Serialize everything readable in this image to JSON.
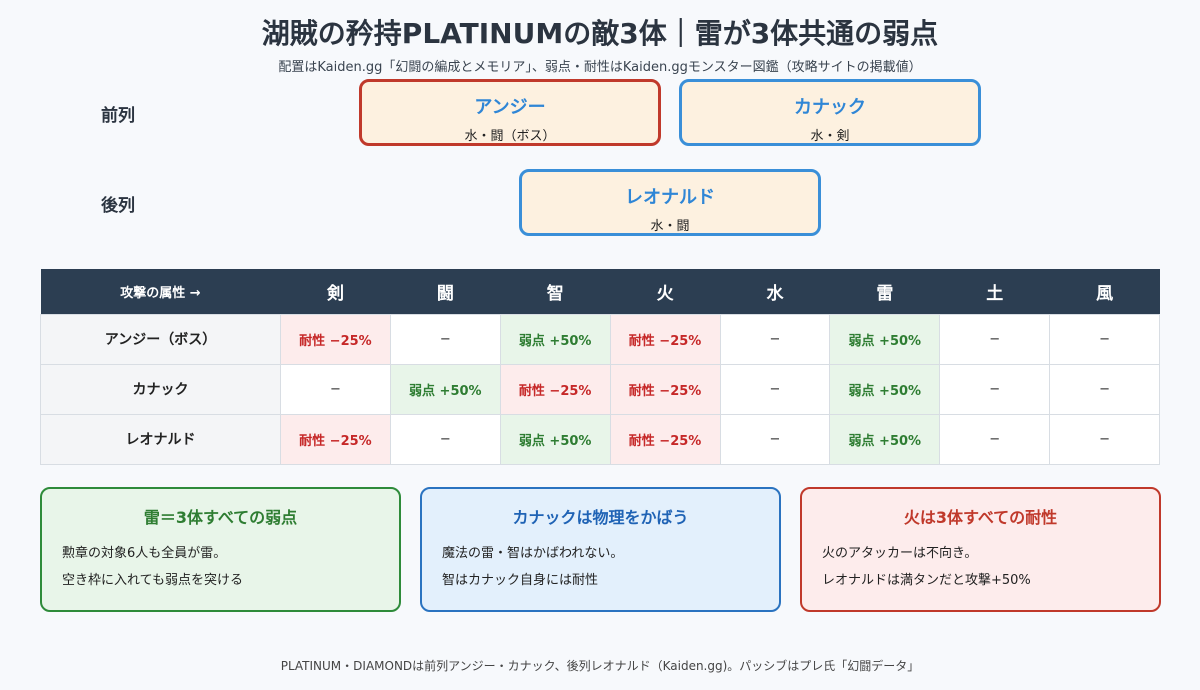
{
  "title": "湖賊の矜持PLATINUMの敵3体｜雷が3体共通の弱点",
  "subtitle": "配置はKaiden.gg「幻闘の編成とメモリア」、弱点・耐性はKaiden.ggモンスター図鑑（攻略サイトの掲載値）",
  "formation": {
    "front_label": "前列",
    "back_label": "後列",
    "enemies": [
      {
        "name": "アンジー",
        "traits": "水・闘（ボス）"
      },
      {
        "name": "カナック",
        "traits": "水・剣"
      },
      {
        "name": "レオナルド",
        "traits": "水・闘"
      }
    ]
  },
  "table": {
    "header_first": "攻撃の属性 →",
    "attributes": [
      "剣",
      "闘",
      "智",
      "火",
      "水",
      "雷",
      "土",
      "風"
    ],
    "rows": [
      {
        "enemy": "アンジー（ボス）",
        "cells": [
          "耐性 −25%",
          "−",
          "弱点 +50%",
          "耐性 −25%",
          "−",
          "弱点 +50%",
          "−",
          "−"
        ]
      },
      {
        "enemy": "カナック",
        "cells": [
          "−",
          "弱点 +50%",
          "耐性 −25%",
          "耐性 −25%",
          "−",
          "弱点 +50%",
          "−",
          "−"
        ]
      },
      {
        "enemy": "レオナルド",
        "cells": [
          "耐性 −25%",
          "−",
          "弱点 +50%",
          "耐性 −25%",
          "−",
          "弱点 +50%",
          "−",
          "−"
        ]
      }
    ]
  },
  "notes": [
    {
      "title": "雷＝3体すべての弱点",
      "lines": [
        "勲章の対象6人も全員が雷。",
        "空き枠に入れても弱点を突ける"
      ]
    },
    {
      "title": "カナックは物理をかばう",
      "lines": [
        "魔法の雷・智はかばわれない。",
        "智はカナック自身には耐性"
      ]
    },
    {
      "title": "火は3体すべての耐性",
      "lines": [
        "火のアタッカーは不向き。",
        "レオナルドは満タンだと攻撃+50%"
      ]
    }
  ],
  "footer": "PLATINUM・DIAMONDは前列アンジー・カナック、後列レオナルド（Kaiden.gg)。パッシブはプレ氏「幻闘データ」",
  "colors": {
    "weak": "#2e7d32",
    "resist": "#c62828",
    "header_bg": "#2c3e52",
    "boss_border": "#c0392b",
    "enemy_border": "#3a8fd8"
  }
}
